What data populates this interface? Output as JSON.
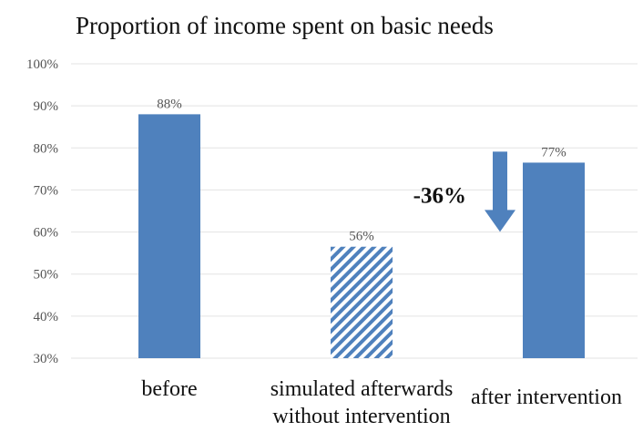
{
  "chart_data": {
    "type": "bar",
    "title": "Proportion of income spent on basic needs",
    "xlabel": "",
    "ylabel": "",
    "ylim": [
      30,
      100
    ],
    "yticks": [
      "30%",
      "40%",
      "50%",
      "60%",
      "70%",
      "80%",
      "90%",
      "100%"
    ],
    "grid": true,
    "categories": [
      [
        "before"
      ],
      [
        "simulated afterwards",
        "without intervention"
      ],
      [
        "after intervention"
      ]
    ],
    "values": [
      88,
      56.5,
      76.5
    ],
    "data_labels": [
      "88%",
      "56%",
      "77%"
    ],
    "styles": [
      "solid",
      "hatched",
      "solid"
    ],
    "annotation": {
      "text": "-36%",
      "arrow": "down",
      "target_category": 2
    },
    "colors": {
      "bar": "#4f81bd",
      "arrow": "#4f81bd",
      "grid": "#e3e3e3"
    }
  }
}
